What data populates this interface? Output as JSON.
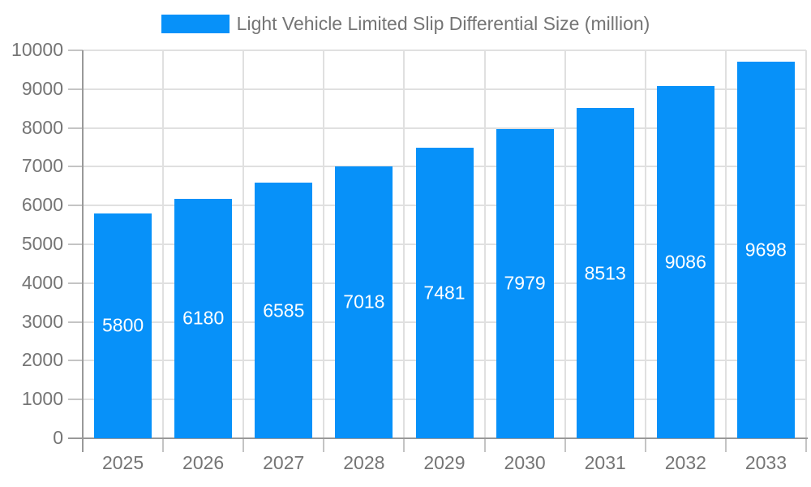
{
  "chart_data": {
    "type": "bar",
    "title": "Light Vehicle Limited Slip Differential Size (million)",
    "categories": [
      "2025",
      "2026",
      "2027",
      "2028",
      "2029",
      "2030",
      "2031",
      "2032",
      "2033"
    ],
    "series": [
      {
        "name": "Light Vehicle Limited Slip Differential Size (million)",
        "values": [
          5800,
          6180,
          6585,
          7018,
          7481,
          7979,
          8513,
          9086,
          9698
        ]
      }
    ],
    "xlabel": "",
    "ylabel": "",
    "ylim": [
      0,
      10000
    ],
    "ytick_step": 1000,
    "ytick_labels": [
      "0",
      "1000",
      "2000",
      "3000",
      "4000",
      "5000",
      "6000",
      "7000",
      "8000",
      "9000",
      "10000"
    ],
    "grid": true,
    "legend_position": "top",
    "value_label_position": "inside-center",
    "colors": {
      "bar": "#0791f9",
      "grid_line": "#e0e0e0",
      "axis_line": "#999999",
      "tick_mark": "#c4c4c4",
      "axis_text": "#757575",
      "legend_text": "#757575",
      "value_label_text": "#ffffff",
      "background": "#ffffff"
    }
  }
}
